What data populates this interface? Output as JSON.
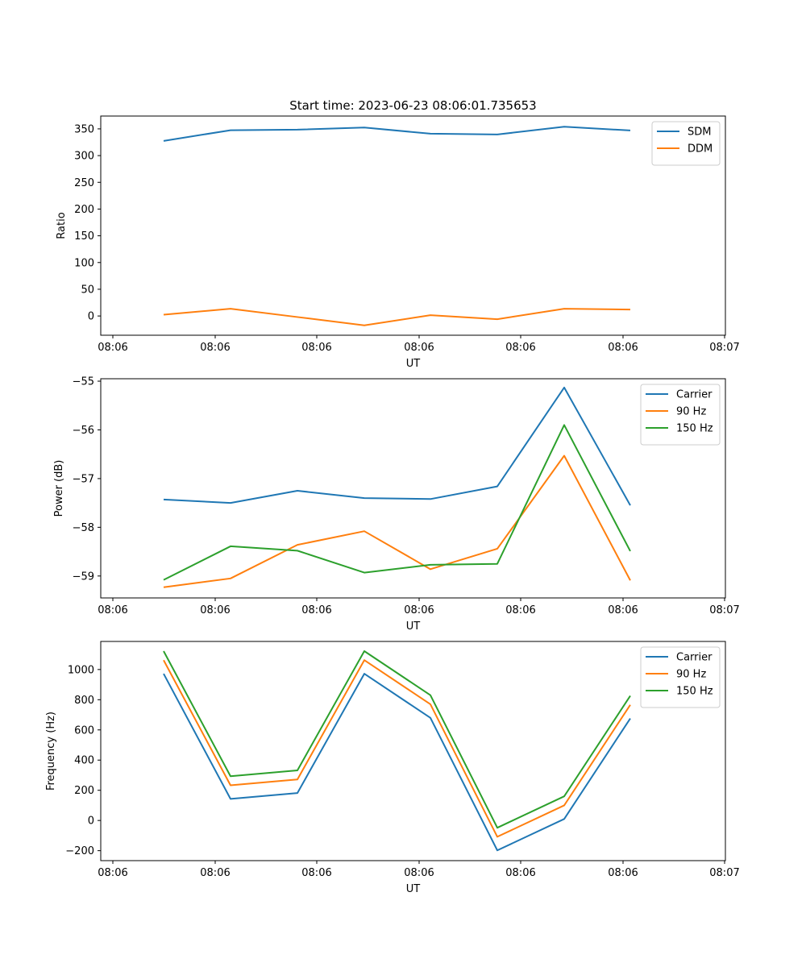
{
  "figure": {
    "title": "Start time: 2023-06-23 08:06:01.735653"
  },
  "chart_data": [
    {
      "type": "line",
      "title": "Start time: 2023-06-23 08:06:01.735653",
      "xlabel": "UT",
      "ylabel": "Ratio",
      "x_tick_labels": [
        "08:06",
        "08:06",
        "08:06",
        "08:06",
        "08:06",
        "08:06",
        "08:07"
      ],
      "y_ticks": [
        0,
        50,
        100,
        150,
        200,
        250,
        300,
        350
      ],
      "ylim": [
        -36,
        374
      ],
      "grid": false,
      "legend_position": "upper right",
      "series": [
        {
          "name": "SDM",
          "color": "#1f77b4",
          "values": [
            327.5,
            347.5,
            348.5,
            352.5,
            341,
            339.5,
            354,
            347
          ]
        },
        {
          "name": "DDM",
          "color": "#ff7f0e",
          "values": [
            2.5,
            13.5,
            -2,
            -17.5,
            1.5,
            -6,
            13.5,
            12
          ]
        }
      ]
    },
    {
      "type": "line",
      "title": "",
      "xlabel": "UT",
      "ylabel": "Power (dB)",
      "x_tick_labels": [
        "08:06",
        "08:06",
        "08:06",
        "08:06",
        "08:06",
        "08:06",
        "08:07"
      ],
      "y_ticks": [
        -59,
        -58,
        -57,
        -56,
        -55
      ],
      "ylim": [
        -59.45,
        -54.95
      ],
      "grid": false,
      "legend_position": "upper right",
      "series": [
        {
          "name": "Carrier",
          "color": "#1f77b4",
          "values": [
            -57.43,
            -57.5,
            -57.25,
            -57.4,
            -57.42,
            -57.16,
            -55.13,
            -57.55
          ]
        },
        {
          "name": "90 Hz",
          "color": "#ff7f0e",
          "values": [
            -59.23,
            -59.05,
            -58.36,
            -58.08,
            -58.86,
            -58.44,
            -56.53,
            -59.09
          ]
        },
        {
          "name": "150 Hz",
          "color": "#2ca02c",
          "values": [
            -59.08,
            -58.39,
            -58.48,
            -58.93,
            -58.77,
            -58.75,
            -55.9,
            -58.49
          ]
        }
      ]
    },
    {
      "type": "line",
      "title": "",
      "xlabel": "UT",
      "ylabel": "Frequency (Hz)",
      "x_tick_labels": [
        "08:06",
        "08:06",
        "08:06",
        "08:06",
        "08:06",
        "08:06",
        "08:07"
      ],
      "y_ticks": [
        -200,
        0,
        200,
        400,
        600,
        800,
        1000
      ],
      "ylim": [
        -266,
        1186
      ],
      "grid": false,
      "legend_position": "upper right",
      "series": [
        {
          "name": "Carrier",
          "color": "#1f77b4",
          "values": [
            972,
            143,
            182,
            972,
            680,
            -198,
            10,
            676
          ]
        },
        {
          "name": "90 Hz",
          "color": "#ff7f0e",
          "values": [
            1062,
            233,
            272,
            1062,
            770,
            -108,
            100,
            766
          ]
        },
        {
          "name": "150 Hz",
          "color": "#2ca02c",
          "values": [
            1122,
            293,
            332,
            1122,
            830,
            -48,
            160,
            826
          ]
        }
      ]
    }
  ]
}
